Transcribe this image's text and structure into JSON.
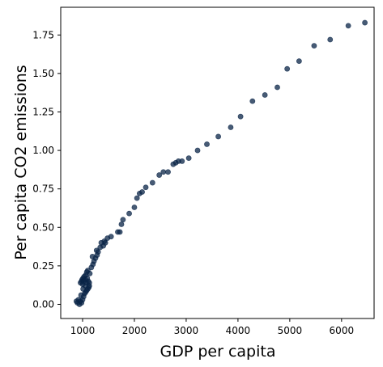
{
  "chart_data": {
    "type": "scatter",
    "xlabel": "GDP per capita",
    "ylabel": "Per capita CO2 emissions",
    "xlim": [
      578,
      6628
    ],
    "ylim": [
      -0.092,
      1.93
    ],
    "x_ticks": [
      1000,
      2000,
      3000,
      4000,
      5000,
      6000
    ],
    "x_tick_labels": [
      "1000",
      "2000",
      "3000",
      "4000",
      "5000",
      "6000"
    ],
    "y_ticks": [
      0.0,
      0.25,
      0.5,
      0.75,
      1.0,
      1.25,
      1.5,
      1.75
    ],
    "y_tick_labels": [
      "0.00",
      "0.25",
      "0.50",
      "0.75",
      "1.00",
      "1.25",
      "1.50",
      "1.75"
    ],
    "grid": false,
    "legend": "none",
    "marker_color": "#0a2447",
    "marker_opacity": 0.75,
    "series": [
      {
        "points": [
          {
            "x": 880,
            "y": 0.02
          },
          {
            "x": 900,
            "y": 0.01
          },
          {
            "x": 920,
            "y": 0.03
          },
          {
            "x": 940,
            "y": 0.0
          },
          {
            "x": 960,
            "y": 0.02
          },
          {
            "x": 980,
            "y": 0.01
          },
          {
            "x": 1000,
            "y": 0.03
          },
          {
            "x": 1020,
            "y": 0.05
          },
          {
            "x": 970,
            "y": 0.06
          },
          {
            "x": 1040,
            "y": 0.07
          },
          {
            "x": 1060,
            "y": 0.08
          },
          {
            "x": 1080,
            "y": 0.09
          },
          {
            "x": 1100,
            "y": 0.1
          },
          {
            "x": 1120,
            "y": 0.11
          },
          {
            "x": 1130,
            "y": 0.12
          },
          {
            "x": 1010,
            "y": 0.1
          },
          {
            "x": 1050,
            "y": 0.12
          },
          {
            "x": 960,
            "y": 0.14
          },
          {
            "x": 980,
            "y": 0.15
          },
          {
            "x": 990,
            "y": 0.16
          },
          {
            "x": 1000,
            "y": 0.13
          },
          {
            "x": 1010,
            "y": 0.17
          },
          {
            "x": 1020,
            "y": 0.15
          },
          {
            "x": 1030,
            "y": 0.18
          },
          {
            "x": 1050,
            "y": 0.16
          },
          {
            "x": 1070,
            "y": 0.14
          },
          {
            "x": 1090,
            "y": 0.17
          },
          {
            "x": 1110,
            "y": 0.15
          },
          {
            "x": 1130,
            "y": 0.14
          },
          {
            "x": 1060,
            "y": 0.19
          },
          {
            "x": 1080,
            "y": 0.21
          },
          {
            "x": 1100,
            "y": 0.22
          },
          {
            "x": 1140,
            "y": 0.2
          },
          {
            "x": 1170,
            "y": 0.24
          },
          {
            "x": 1200,
            "y": 0.26
          },
          {
            "x": 1220,
            "y": 0.28
          },
          {
            "x": 1190,
            "y": 0.31
          },
          {
            "x": 1250,
            "y": 0.3
          },
          {
            "x": 1280,
            "y": 0.32
          },
          {
            "x": 1300,
            "y": 0.34
          },
          {
            "x": 1270,
            "y": 0.35
          },
          {
            "x": 1340,
            "y": 0.37
          },
          {
            "x": 1360,
            "y": 0.4
          },
          {
            "x": 1400,
            "y": 0.38
          },
          {
            "x": 1420,
            "y": 0.41
          },
          {
            "x": 1440,
            "y": 0.4
          },
          {
            "x": 1480,
            "y": 0.43
          },
          {
            "x": 1550,
            "y": 0.44
          },
          {
            "x": 1680,
            "y": 0.47
          },
          {
            "x": 1720,
            "y": 0.47
          },
          {
            "x": 1750,
            "y": 0.52
          },
          {
            "x": 1780,
            "y": 0.55
          },
          {
            "x": 1900,
            "y": 0.59
          },
          {
            "x": 2000,
            "y": 0.63
          },
          {
            "x": 2050,
            "y": 0.69
          },
          {
            "x": 2100,
            "y": 0.72
          },
          {
            "x": 2150,
            "y": 0.73
          },
          {
            "x": 2220,
            "y": 0.76
          },
          {
            "x": 2350,
            "y": 0.79
          },
          {
            "x": 2480,
            "y": 0.84
          },
          {
            "x": 2560,
            "y": 0.86
          },
          {
            "x": 2650,
            "y": 0.86
          },
          {
            "x": 2750,
            "y": 0.91
          },
          {
            "x": 2800,
            "y": 0.92
          },
          {
            "x": 2850,
            "y": 0.93
          },
          {
            "x": 2920,
            "y": 0.93
          },
          {
            "x": 3050,
            "y": 0.95
          },
          {
            "x": 3220,
            "y": 1.0
          },
          {
            "x": 3400,
            "y": 1.04
          },
          {
            "x": 3620,
            "y": 1.09
          },
          {
            "x": 3860,
            "y": 1.15
          },
          {
            "x": 4050,
            "y": 1.22
          },
          {
            "x": 4280,
            "y": 1.32
          },
          {
            "x": 4520,
            "y": 1.36
          },
          {
            "x": 4760,
            "y": 1.41
          },
          {
            "x": 4950,
            "y": 1.53
          },
          {
            "x": 5180,
            "y": 1.58
          },
          {
            "x": 5470,
            "y": 1.68
          },
          {
            "x": 5780,
            "y": 1.72
          },
          {
            "x": 6130,
            "y": 1.81
          },
          {
            "x": 6450,
            "y": 1.83
          }
        ]
      }
    ]
  }
}
